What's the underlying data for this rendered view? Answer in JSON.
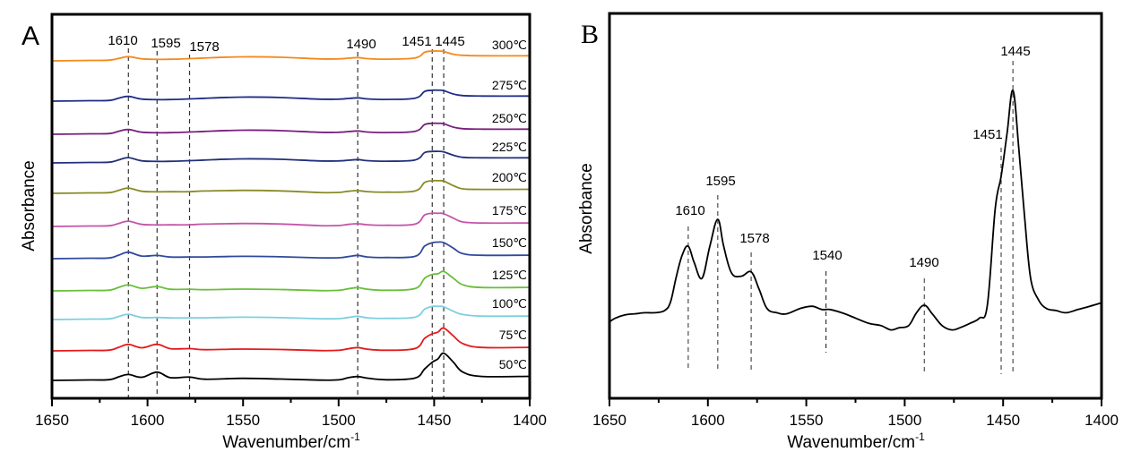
{
  "chart_data": [
    {
      "panel": "A",
      "type": "line",
      "title": "",
      "xlabel": "Wavenumber/cm",
      "xlabel_superscript": "-1",
      "ylabel": "Absorbance",
      "xlim": [
        1650,
        1400
      ],
      "x_reversed": true,
      "xticks": [
        1650,
        1600,
        1550,
        1500,
        1450,
        1400
      ],
      "yticks_shown": false,
      "grid": false,
      "legend": "inline labels at right end of each trace",
      "reference_lines": [
        {
          "x": 1610,
          "label": "1610"
        },
        {
          "x": 1595,
          "label": "1595"
        },
        {
          "x": 1578,
          "label": "1578"
        },
        {
          "x": 1490,
          "label": "1490"
        },
        {
          "x": 1451,
          "label": "1451"
        },
        {
          "x": 1445,
          "label": "1445"
        }
      ],
      "series_note": "stacked (vertically offset) spectra, bottom = 50℃, top = 300℃; values in arbitrary absorbance units relative to each trace's baseline",
      "x": [
        1650,
        1630,
        1620,
        1615,
        1610,
        1603,
        1595,
        1588,
        1578,
        1570,
        1550,
        1530,
        1510,
        1500,
        1495,
        1490,
        1485,
        1475,
        1460,
        1455,
        1451,
        1448,
        1445,
        1440,
        1435,
        1425,
        1400
      ],
      "series": [
        {
          "name": "50℃",
          "color": "#000000",
          "values": [
            0.0,
            0.03,
            0.05,
            0.3,
            0.5,
            0.25,
            0.7,
            0.2,
            0.25,
            0.05,
            0.12,
            0.05,
            -0.05,
            -0.03,
            0.15,
            0.25,
            0.1,
            -0.05,
            0.1,
            0.9,
            1.5,
            1.8,
            2.3,
            1.5,
            0.6,
            0.2,
            0.2
          ]
        },
        {
          "name": "75℃",
          "color": "#e41a1c",
          "values": [
            0.0,
            0.03,
            0.05,
            0.3,
            0.55,
            0.25,
            0.55,
            0.15,
            0.15,
            0.05,
            0.1,
            0.05,
            -0.05,
            -0.03,
            0.1,
            0.2,
            0.05,
            -0.05,
            0.1,
            1.0,
            1.4,
            1.55,
            1.9,
            1.2,
            0.5,
            0.15,
            0.15
          ]
        },
        {
          "name": "100℃",
          "color": "#7ecfdf",
          "values": [
            0.0,
            0.03,
            0.05,
            0.25,
            0.45,
            0.15,
            0.15,
            0.1,
            0.1,
            0.1,
            0.15,
            0.1,
            0.0,
            0.0,
            0.1,
            0.2,
            0.05,
            0.0,
            0.1,
            0.8,
            1.05,
            1.05,
            1.0,
            0.6,
            0.3,
            0.15,
            0.15
          ]
        },
        {
          "name": "125℃",
          "color": "#6abf3a",
          "values": [
            0.0,
            0.03,
            0.05,
            0.3,
            0.5,
            0.2,
            0.35,
            0.1,
            0.1,
            0.05,
            0.1,
            0.05,
            -0.05,
            -0.03,
            0.1,
            0.2,
            0.05,
            -0.05,
            0.1,
            1.0,
            1.35,
            1.4,
            1.6,
            1.0,
            0.4,
            0.15,
            0.15
          ]
        },
        {
          "name": "150℃",
          "color": "#2f4b9c",
          "values": [
            0.0,
            0.03,
            0.05,
            0.3,
            0.55,
            0.2,
            0.25,
            0.1,
            0.1,
            0.1,
            0.15,
            0.1,
            0.0,
            0.0,
            0.1,
            0.2,
            0.05,
            0.0,
            0.1,
            1.0,
            1.3,
            1.35,
            1.3,
            0.8,
            0.3,
            0.15,
            0.15
          ]
        },
        {
          "name": "175℃",
          "color": "#c355a8",
          "values": [
            0.0,
            0.03,
            0.05,
            0.25,
            0.45,
            0.15,
            0.1,
            0.1,
            0.1,
            0.15,
            0.2,
            0.15,
            0.0,
            0.0,
            0.1,
            0.15,
            0.05,
            0.0,
            0.1,
            0.9,
            1.05,
            1.05,
            1.0,
            0.6,
            0.25,
            0.15,
            0.15
          ]
        },
        {
          "name": "200℃",
          "color": "#8a8a28",
          "values": [
            0.0,
            0.03,
            0.05,
            0.25,
            0.45,
            0.15,
            0.1,
            0.1,
            0.1,
            0.15,
            0.2,
            0.15,
            0.0,
            0.0,
            0.1,
            0.15,
            0.05,
            0.0,
            0.1,
            0.85,
            1.0,
            1.0,
            0.95,
            0.55,
            0.25,
            0.2,
            0.2
          ]
        },
        {
          "name": "225℃",
          "color": "#23307a",
          "values": [
            0.0,
            0.03,
            0.05,
            0.25,
            0.45,
            0.15,
            0.1,
            0.1,
            0.15,
            0.2,
            0.3,
            0.25,
            0.1,
            0.1,
            0.15,
            0.2,
            0.1,
            0.05,
            0.15,
            0.8,
            0.9,
            0.9,
            0.85,
            0.55,
            0.35,
            0.3,
            0.3
          ]
        },
        {
          "name": "250℃",
          "color": "#7a1f7e",
          "values": [
            0.0,
            0.03,
            0.05,
            0.25,
            0.4,
            0.15,
            0.1,
            0.1,
            0.15,
            0.2,
            0.3,
            0.25,
            0.1,
            0.1,
            0.15,
            0.2,
            0.1,
            0.05,
            0.15,
            0.75,
            0.85,
            0.85,
            0.8,
            0.5,
            0.35,
            0.3,
            0.3
          ]
        },
        {
          "name": "275℃",
          "color": "#1f2d84",
          "values": [
            0.0,
            0.03,
            0.05,
            0.25,
            0.4,
            0.15,
            0.1,
            0.1,
            0.15,
            0.2,
            0.3,
            0.25,
            0.1,
            0.1,
            0.15,
            0.2,
            0.1,
            0.05,
            0.15,
            0.75,
            0.85,
            0.85,
            0.8,
            0.5,
            0.35,
            0.3,
            0.3
          ]
        },
        {
          "name": "300℃",
          "color": "#f28a1e",
          "values": [
            0.0,
            0.03,
            0.05,
            0.2,
            0.35,
            0.15,
            0.1,
            0.1,
            0.15,
            0.2,
            0.3,
            0.25,
            0.1,
            0.1,
            0.15,
            0.2,
            0.1,
            0.05,
            0.15,
            0.65,
            0.75,
            0.75,
            0.7,
            0.45,
            0.35,
            0.3,
            0.3
          ]
        }
      ]
    },
    {
      "panel": "B",
      "type": "line",
      "title": "",
      "xlabel": "Wavenumber/cm",
      "xlabel_superscript": "-1",
      "ylabel": "Absorbance",
      "xlim": [
        1650,
        1400
      ],
      "x_reversed": true,
      "xticks": [
        1650,
        1600,
        1550,
        1500,
        1450,
        1400
      ],
      "yticks_shown": false,
      "grid": false,
      "reference_lines": [
        {
          "x": 1610,
          "label": "1610"
        },
        {
          "x": 1595,
          "label": "1595"
        },
        {
          "x": 1578,
          "label": "1578"
        },
        {
          "x": 1540,
          "label": "1540"
        },
        {
          "x": 1490,
          "label": "1490"
        },
        {
          "x": 1451,
          "label": "1451"
        },
        {
          "x": 1445,
          "label": "1445"
        }
      ],
      "series": [
        {
          "name": "spectrum",
          "color": "#000000",
          "x": [
            1650,
            1647,
            1642,
            1637,
            1632,
            1627,
            1622,
            1619,
            1616,
            1613,
            1610,
            1607,
            1603,
            1599,
            1595,
            1592,
            1588,
            1583,
            1578,
            1574,
            1570,
            1565,
            1560,
            1553,
            1547,
            1542,
            1538,
            1532,
            1525,
            1518,
            1512,
            1507,
            1503,
            1498,
            1494,
            1490,
            1486,
            1481,
            1476,
            1472,
            1467,
            1462,
            1458,
            1454,
            1451,
            1448,
            1445,
            1442,
            1439,
            1436,
            1432,
            1428,
            1423,
            1418,
            1412,
            1406,
            1400
          ],
          "y": [
            0.0,
            0.03,
            0.06,
            0.07,
            0.08,
            0.08,
            0.1,
            0.18,
            0.42,
            0.62,
            0.7,
            0.55,
            0.4,
            0.7,
            0.95,
            0.7,
            0.45,
            0.42,
            0.46,
            0.3,
            0.12,
            0.08,
            0.07,
            0.12,
            0.14,
            0.11,
            0.11,
            0.08,
            0.03,
            -0.02,
            -0.04,
            -0.08,
            -0.06,
            -0.04,
            0.08,
            0.15,
            0.07,
            -0.04,
            -0.08,
            -0.06,
            -0.02,
            0.03,
            0.15,
            1.05,
            1.35,
            1.75,
            2.15,
            1.6,
            0.95,
            0.4,
            0.2,
            0.12,
            0.1,
            0.08,
            0.11,
            0.14,
            0.17
          ]
        }
      ]
    }
  ],
  "panels": {
    "a": {
      "letter": "A",
      "ylabel": "Absorbance",
      "xlabel": "Wavenumber/cm",
      "xlabel_sup": "-1"
    },
    "b": {
      "letter": "B",
      "ylabel": "Absorbance",
      "xlabel": "Wavenumber/cm",
      "xlabel_sup": "-1"
    }
  }
}
